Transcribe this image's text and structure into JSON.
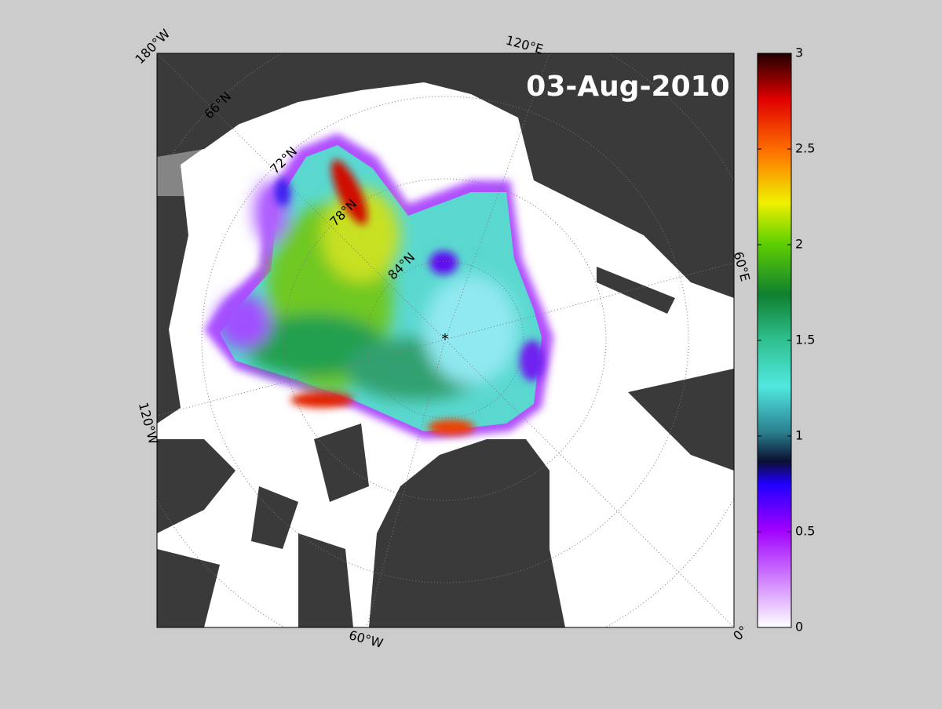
{
  "map": {
    "date": "03-Aug-2010",
    "lon_labels": [
      "180°W",
      "120°E",
      "60°E",
      "0°",
      "60°W",
      "120°W"
    ],
    "lat_labels": [
      "66°N",
      "72°N",
      "78°N",
      "84°N"
    ]
  },
  "colorbar": {
    "lim": [
      0,
      3
    ],
    "ticks": [
      0,
      0.5,
      1,
      1.5,
      2,
      2.5,
      3
    ]
  }
}
